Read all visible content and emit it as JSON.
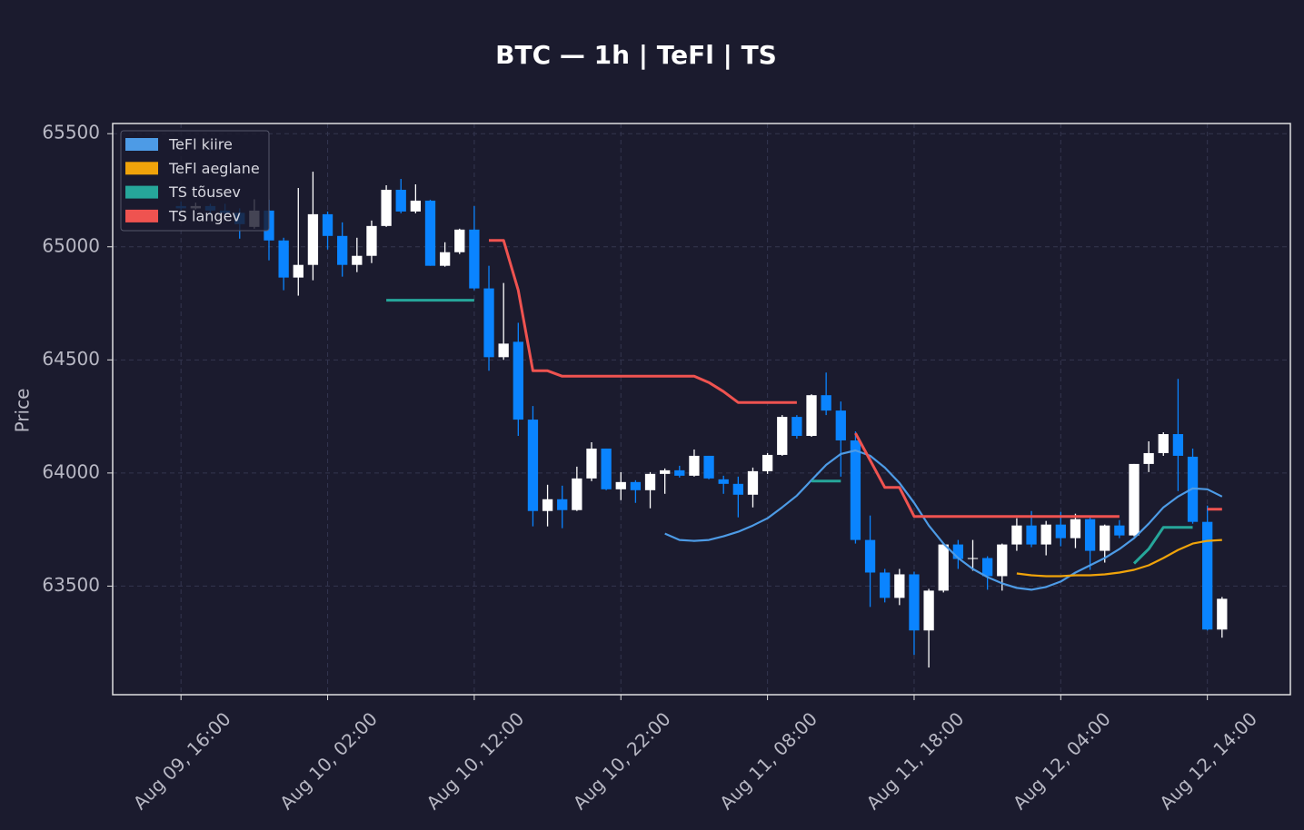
{
  "chart_data": {
    "type": "candlestick",
    "title": "BTC — 1h  |  TeFl  |  TS",
    "y_label": "Price",
    "x": [
      "Aug 09, 16:00",
      "Aug 09, 17:00",
      "Aug 09, 18:00",
      "Aug 09, 19:00",
      "Aug 09, 20:00",
      "Aug 09, 21:00",
      "Aug 09, 22:00",
      "Aug 09, 23:00",
      "Aug 10, 00:00",
      "Aug 10, 01:00",
      "Aug 10, 02:00",
      "Aug 10, 03:00",
      "Aug 10, 04:00",
      "Aug 10, 05:00",
      "Aug 10, 06:00",
      "Aug 10, 07:00",
      "Aug 10, 08:00",
      "Aug 10, 09:00",
      "Aug 10, 10:00",
      "Aug 10, 11:00",
      "Aug 10, 12:00",
      "Aug 10, 13:00",
      "Aug 10, 14:00",
      "Aug 10, 15:00",
      "Aug 10, 16:00",
      "Aug 10, 17:00",
      "Aug 10, 18:00",
      "Aug 10, 19:00",
      "Aug 10, 20:00",
      "Aug 10, 21:00",
      "Aug 10, 22:00",
      "Aug 10, 23:00",
      "Aug 11, 00:00",
      "Aug 11, 01:00",
      "Aug 11, 02:00",
      "Aug 11, 03:00",
      "Aug 11, 04:00",
      "Aug 11, 05:00",
      "Aug 11, 06:00",
      "Aug 11, 07:00",
      "Aug 11, 08:00",
      "Aug 11, 09:00",
      "Aug 11, 10:00",
      "Aug 11, 11:00",
      "Aug 11, 12:00",
      "Aug 11, 13:00",
      "Aug 11, 14:00",
      "Aug 11, 15:00",
      "Aug 11, 16:00",
      "Aug 11, 17:00",
      "Aug 11, 18:00",
      "Aug 11, 19:00",
      "Aug 11, 20:00",
      "Aug 11, 21:00",
      "Aug 11, 22:00",
      "Aug 11, 23:00",
      "Aug 12, 00:00",
      "Aug 12, 01:00",
      "Aug 12, 02:00",
      "Aug 12, 03:00",
      "Aug 12, 04:00",
      "Aug 12, 05:00",
      "Aug 12, 06:00",
      "Aug 12, 07:00",
      "Aug 12, 08:00",
      "Aug 12, 09:00",
      "Aug 12, 10:00",
      "Aug 12, 11:00",
      "Aug 12, 12:00",
      "Aug 12, 13:00",
      "Aug 12, 14:00",
      "Aug 12, 15:00"
    ],
    "open": [
      65180,
      65170,
      65180,
      65160,
      65150,
      65088,
      65160,
      65028,
      64864,
      64920,
      65144,
      65048,
      64920,
      64960,
      65092,
      65252,
      65156,
      65204,
      64916,
      64976,
      65076,
      64816,
      64512,
      64580,
      64236,
      63832,
      63884,
      63836,
      63976,
      64108,
      63928,
      63960,
      63924,
      63996,
      64012,
      63988,
      64076,
      63972,
      63952,
      63904,
      64008,
      64080,
      64248,
      64164,
      64344,
      64276,
      64144,
      63704,
      63560,
      63448,
      63552,
      63304,
      63480,
      63684,
      63620,
      63624,
      63544,
      63684,
      63768,
      63684,
      63772,
      63712,
      63796,
      63656,
      63768,
      63724,
      64040,
      64088,
      64172,
      64072,
      63784,
      63308
    ],
    "high": [
      65200,
      65195,
      65190,
      65190,
      65170,
      65210,
      65208,
      65040,
      65260,
      65332,
      65156,
      65108,
      65040,
      65116,
      65272,
      65300,
      65276,
      65208,
      65020,
      65080,
      65180,
      64916,
      64840,
      64664,
      64296,
      63948,
      63944,
      64028,
      64136,
      64108,
      64004,
      63968,
      64004,
      64020,
      64032,
      64104,
      64076,
      63988,
      63984,
      64024,
      64088,
      64256,
      64256,
      64348,
      64444,
      64316,
      64184,
      63812,
      63576,
      63576,
      63564,
      63488,
      63688,
      63704,
      63704,
      63632,
      63688,
      63800,
      63832,
      63788,
      63828,
      63820,
      63808,
      63772,
      63792,
      64040,
      64140,
      64180,
      64416,
      64108,
      63856,
      63452
    ],
    "low": [
      65160,
      65165,
      65150,
      65120,
      65036,
      65080,
      64940,
      64808,
      64784,
      64852,
      64988,
      64868,
      64888,
      64928,
      65088,
      65148,
      65148,
      64916,
      64912,
      64968,
      64808,
      64452,
      64500,
      64164,
      63764,
      63764,
      63756,
      63832,
      63964,
      63924,
      63880,
      63868,
      63844,
      63908,
      63980,
      63984,
      63972,
      63908,
      63804,
      63848,
      63996,
      64076,
      64152,
      64160,
      64256,
      63984,
      63688,
      63408,
      63428,
      63416,
      63196,
      63140,
      63472,
      63576,
      63568,
      63484,
      63480,
      63656,
      63672,
      63636,
      63676,
      63668,
      63572,
      63604,
      63712,
      63720,
      64004,
      64076,
      63920,
      63776,
      63304,
      63272
    ],
    "close": [
      65170,
      65180,
      65160,
      65150,
      65100,
      65160,
      65028,
      64864,
      64920,
      65144,
      65048,
      64920,
      64960,
      65092,
      65252,
      65156,
      65204,
      64916,
      64976,
      65076,
      64816,
      64512,
      64572,
      64236,
      63832,
      63884,
      63836,
      63976,
      64108,
      63928,
      63960,
      63924,
      63996,
      64012,
      63988,
      64076,
      63976,
      63952,
      63904,
      64008,
      64080,
      64248,
      64164,
      64344,
      64276,
      64144,
      63704,
      63560,
      63448,
      63552,
      63304,
      63480,
      63684,
      63620,
      63624,
      63544,
      63684,
      63768,
      63684,
      63772,
      63712,
      63796,
      63656,
      63768,
      63724,
      64040,
      64088,
      64172,
      64076,
      63784,
      63308,
      63444
    ],
    "up_color": "#ffffff",
    "down_color": "#0a84ff",
    "series": [
      {
        "name": "TeFl kiire",
        "color": "#4d9be6",
        "values": [
          null,
          null,
          null,
          null,
          null,
          null,
          null,
          null,
          null,
          null,
          null,
          null,
          null,
          null,
          null,
          null,
          null,
          null,
          null,
          null,
          null,
          null,
          null,
          null,
          null,
          null,
          null,
          null,
          null,
          null,
          null,
          null,
          null,
          63732,
          63704,
          63700,
          63704,
          63720,
          63740,
          63768,
          63800,
          63848,
          63900,
          63968,
          64036,
          64084,
          64100,
          64076,
          64024,
          63956,
          63868,
          63768,
          63688,
          63624,
          63576,
          63540,
          63512,
          63492,
          63484,
          63496,
          63520,
          63560,
          63592,
          63624,
          63664,
          63712,
          63776,
          63848,
          63896,
          63932,
          63928,
          63896
        ]
      },
      {
        "name": "TeFl aeglane",
        "color": "#f0a30a",
        "values": [
          null,
          null,
          null,
          null,
          null,
          null,
          null,
          null,
          null,
          null,
          null,
          null,
          null,
          null,
          null,
          null,
          null,
          null,
          null,
          null,
          null,
          null,
          null,
          null,
          null,
          null,
          null,
          null,
          null,
          null,
          null,
          null,
          null,
          null,
          null,
          null,
          null,
          null,
          null,
          null,
          null,
          null,
          null,
          null,
          null,
          null,
          null,
          null,
          null,
          null,
          null,
          null,
          null,
          null,
          null,
          null,
          null,
          63556,
          63548,
          63544,
          63544,
          63548,
          63548,
          63552,
          63560,
          63572,
          63592,
          63624,
          63660,
          63688,
          63700,
          63704
        ]
      },
      {
        "name": "TS tõusev",
        "color": "#26a69a",
        "values": [
          null,
          null,
          null,
          null,
          null,
          null,
          null,
          null,
          null,
          null,
          null,
          null,
          null,
          null,
          64764,
          64764,
          64764,
          64764,
          64764,
          64764,
          64764,
          null,
          null,
          null,
          null,
          null,
          null,
          null,
          null,
          null,
          null,
          null,
          null,
          null,
          null,
          null,
          null,
          null,
          null,
          null,
          null,
          null,
          null,
          63964,
          63964,
          63964,
          null,
          null,
          null,
          null,
          null,
          null,
          null,
          null,
          null,
          null,
          null,
          null,
          null,
          null,
          null,
          null,
          null,
          null,
          null,
          63600,
          63664,
          63760,
          63760,
          63760,
          null,
          null
        ]
      },
      {
        "name": "TS langev",
        "color": "#ef5350",
        "values": [
          null,
          null,
          null,
          null,
          null,
          null,
          null,
          null,
          null,
          null,
          null,
          null,
          null,
          null,
          null,
          null,
          null,
          null,
          null,
          null,
          null,
          65028,
          65028,
          64808,
          64452,
          64452,
          64428,
          64428,
          64428,
          64428,
          64428,
          64428,
          64428,
          64428,
          64428,
          64428,
          64400,
          64360,
          64312,
          64312,
          64312,
          64312,
          64312,
          null,
          null,
          null,
          64176,
          64056,
          63936,
          63936,
          63808,
          63808,
          63808,
          63808,
          63808,
          63808,
          63808,
          63808,
          63808,
          63808,
          63808,
          63808,
          63808,
          63808,
          63808,
          null,
          null,
          null,
          null,
          null,
          63840,
          63840
        ]
      }
    ],
    "xticks": [
      "Aug 09, 16:00",
      "Aug 10, 02:00",
      "Aug 10, 12:00",
      "Aug 10, 22:00",
      "Aug 11, 08:00",
      "Aug 11, 18:00",
      "Aug 12, 04:00",
      "Aug 12, 14:00"
    ],
    "ylim": [
      63020,
      65545
    ],
    "yticks": [
      63500,
      64000,
      64500,
      65000,
      65500
    ],
    "grid": true,
    "legend": "upper left"
  }
}
